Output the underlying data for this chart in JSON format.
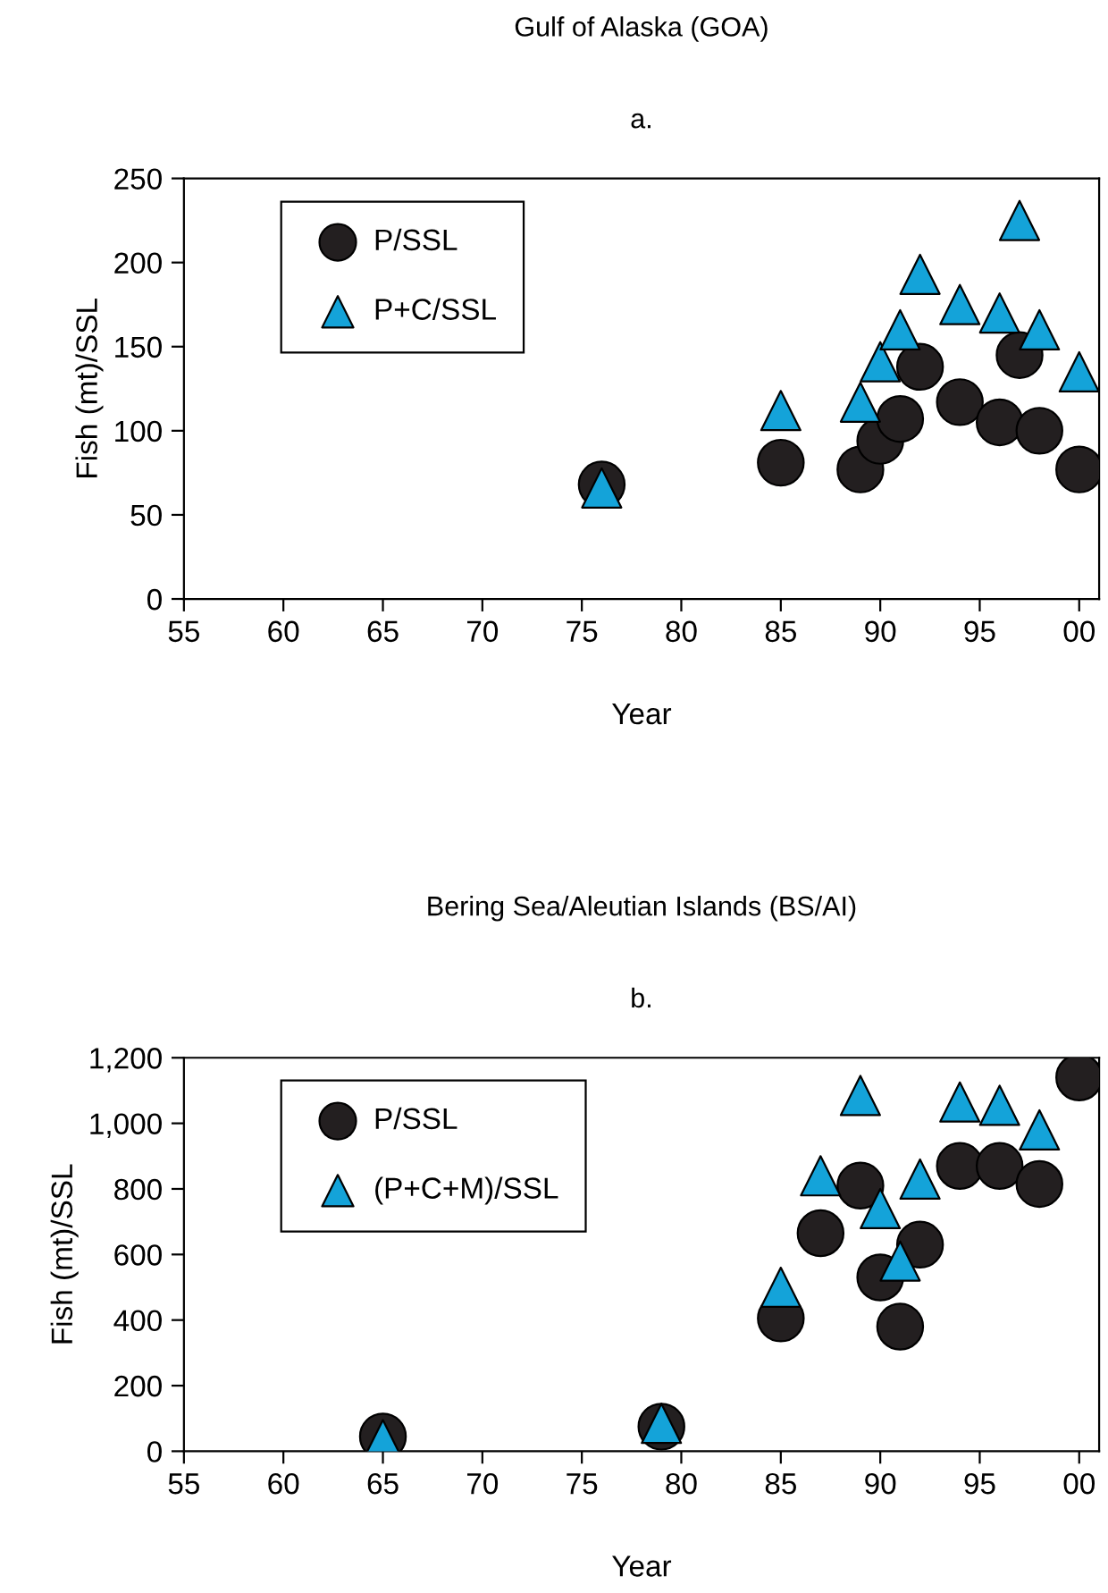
{
  "chart_data": [
    {
      "type": "scatter",
      "title": "Gulf of Alaska (GOA)",
      "subtitle": "a.",
      "xlabel": "Year",
      "ylabel": "Fish (mt)/SSL",
      "xlim": [
        "1955",
        "2001"
      ],
      "xticks": [
        {
          "value": "1955",
          "label": "55"
        },
        {
          "value": "1960",
          "label": "60"
        },
        {
          "value": "1965",
          "label": "65"
        },
        {
          "value": "1970",
          "label": "70"
        },
        {
          "value": "1975",
          "label": "75"
        },
        {
          "value": "1980",
          "label": "80"
        },
        {
          "value": "1985",
          "label": "85"
        },
        {
          "value": "1990",
          "label": "90"
        },
        {
          "value": "1995",
          "label": "95"
        },
        {
          "value": "2000",
          "label": "00"
        }
      ],
      "ylim": [
        0,
        250
      ],
      "yticks": [
        0,
        50,
        100,
        150,
        200,
        250
      ],
      "grid": false,
      "legend": "top left",
      "series": [
        {
          "name": "P/SSL",
          "color": "#231f20",
          "marker": "circle",
          "x": [
            "1976",
            "1985",
            "1989",
            "1990",
            "1991",
            "1992",
            "1994",
            "1996",
            "1997",
            "1998",
            "2000"
          ],
          "values": [
            68,
            81,
            77,
            94,
            107,
            138,
            117,
            105,
            145,
            100,
            77
          ]
        },
        {
          "name": "P+C/SSL",
          "color": "#14a3d9",
          "marker": "triangle",
          "x": [
            "1976",
            "1985",
            "1989",
            "1990",
            "1991",
            "1992",
            "1994",
            "1996",
            "1997",
            "1998",
            "2000"
          ],
          "values": [
            66,
            112,
            117,
            141,
            160,
            193,
            175,
            170,
            225,
            160,
            135
          ]
        }
      ]
    },
    {
      "type": "scatter",
      "title": "Bering Sea/Aleutian Islands (BS/AI)",
      "subtitle": "b.",
      "xlabel": "Year",
      "ylabel": "Fish (mt)/SSL",
      "xlim": [
        "1955",
        "2001"
      ],
      "xticks": [
        {
          "value": "1955",
          "label": "55"
        },
        {
          "value": "1960",
          "label": "60"
        },
        {
          "value": "1965",
          "label": "65"
        },
        {
          "value": "1970",
          "label": "70"
        },
        {
          "value": "1975",
          "label": "75"
        },
        {
          "value": "1980",
          "label": "80"
        },
        {
          "value": "1985",
          "label": "85"
        },
        {
          "value": "1990",
          "label": "90"
        },
        {
          "value": "1995",
          "label": "95"
        },
        {
          "value": "2000",
          "label": "00"
        }
      ],
      "ylim": [
        0,
        1200
      ],
      "yticks": [
        0,
        200,
        400,
        600,
        800,
        {
          "value": 1000,
          "label": "1,000"
        },
        {
          "value": 1200,
          "label": "1,200"
        }
      ],
      "grid": false,
      "legend": "top left",
      "series": [
        {
          "name": "P/SSL",
          "color": "#231f20",
          "marker": "circle",
          "x": [
            "1965",
            "1979",
            "1985",
            "1987",
            "1989",
            "1990",
            "1991",
            "1992",
            "1994",
            "1996",
            "1998",
            "2000"
          ],
          "values": [
            45,
            75,
            405,
            665,
            810,
            530,
            380,
            630,
            870,
            870,
            815,
            1140
          ]
        },
        {
          "name": "(P+C+M)/SSL",
          "color": "#14a3d9",
          "marker": "triangle",
          "x": [
            "1965",
            "1979",
            "1985",
            "1987",
            "1989",
            "1990",
            "1991",
            "1992",
            "1994",
            "1996",
            "1998"
          ],
          "values": [
            35,
            85,
            500,
            840,
            1085,
            740,
            580,
            830,
            1065,
            1055,
            980
          ]
        }
      ]
    }
  ]
}
